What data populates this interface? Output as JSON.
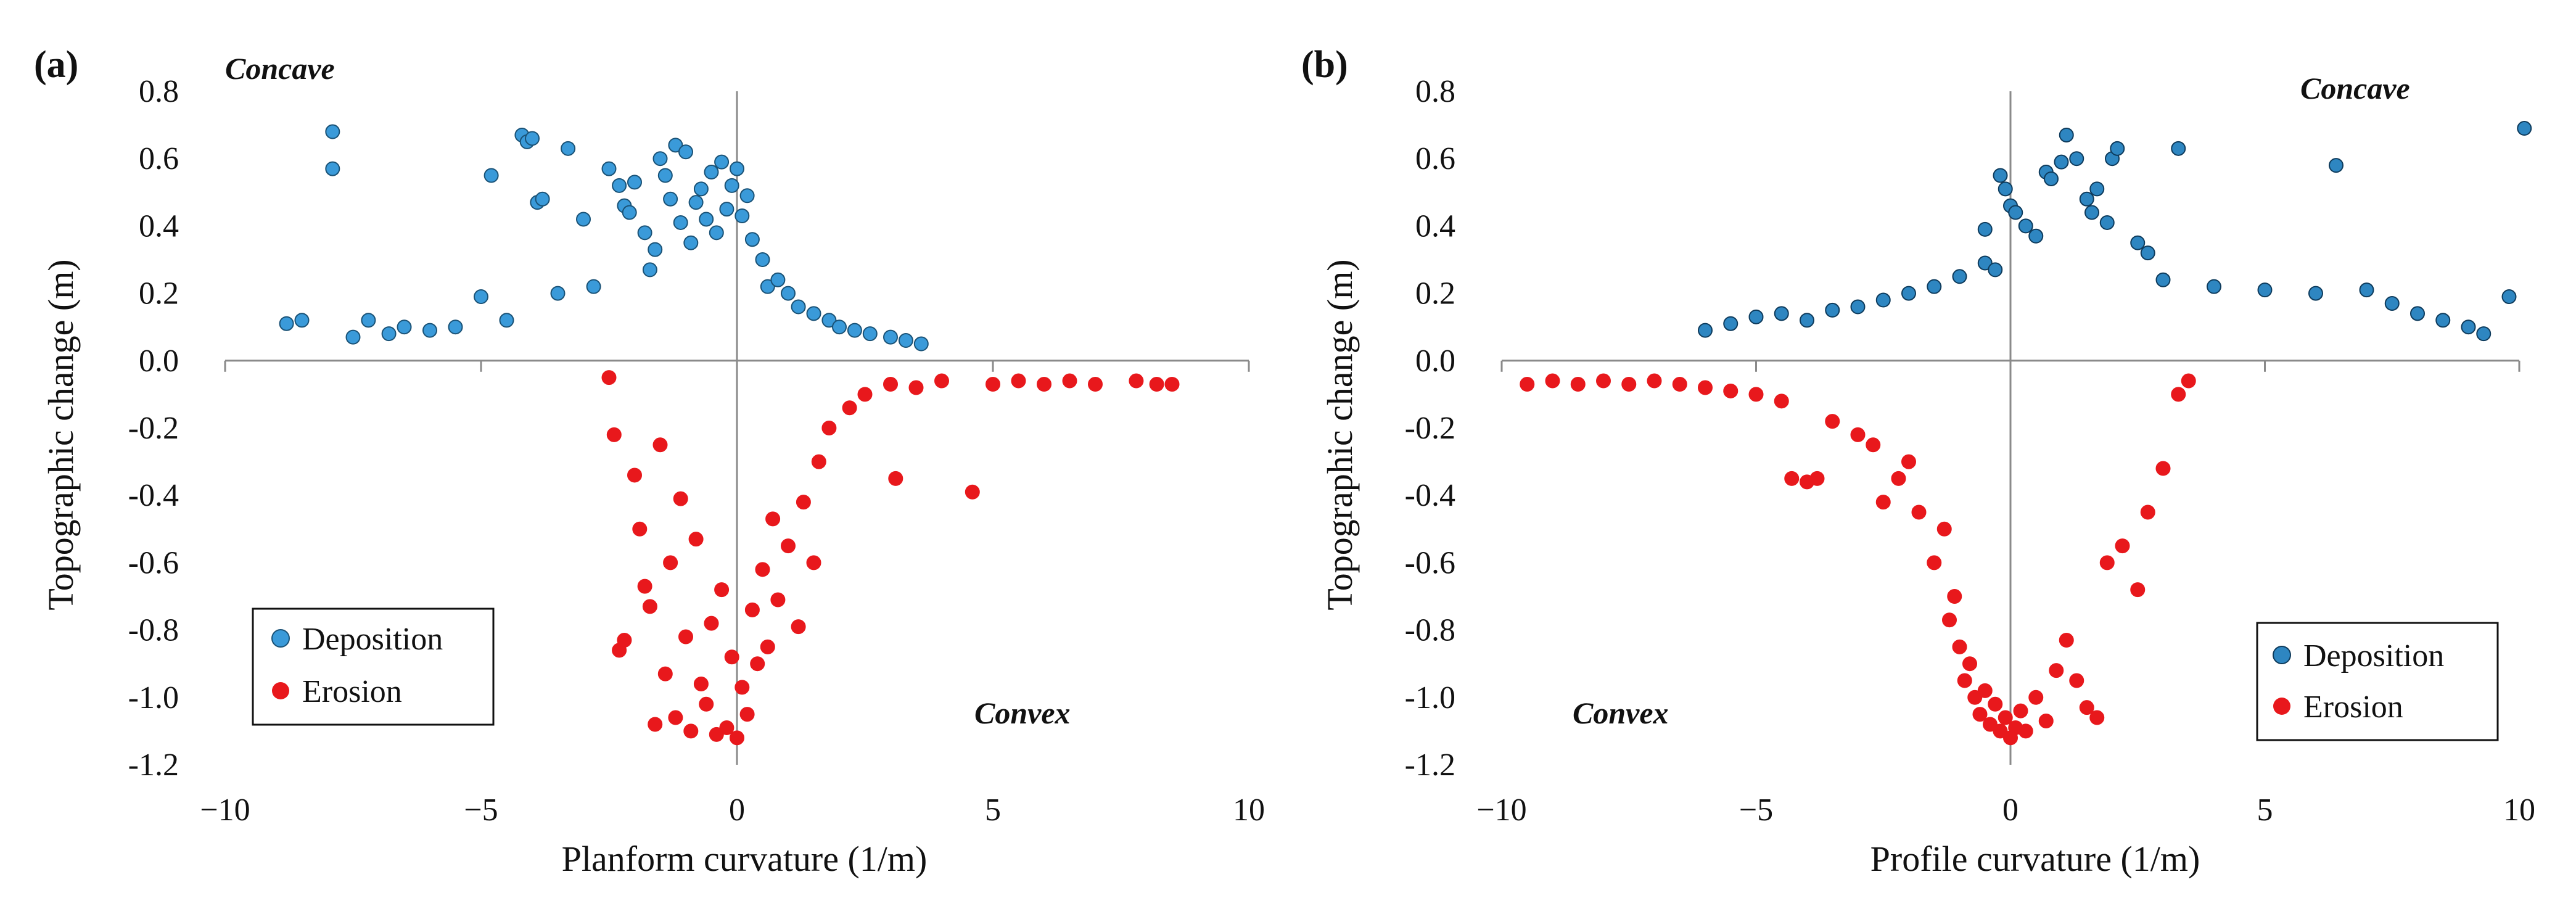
{
  "chart_data": [
    {
      "type": "scatter",
      "panel_label": "(a)",
      "xlabel": "Planform curvature (1/m)",
      "ylabel": "Topographic change (m)",
      "xlim": [
        -10,
        10
      ],
      "ylim": [
        -1.2,
        0.8
      ],
      "xticks": [
        "−10",
        "−5",
        "0",
        "5",
        "10"
      ],
      "yticks": [
        "0.8",
        "0.6",
        "0.4",
        "0.2",
        "0.0",
        "-0.2",
        "-0.4",
        "-0.6",
        "-0.8",
        "-1.0",
        "-1.2"
      ],
      "annotations": [
        {
          "text": "Concave",
          "position": "top-left"
        },
        {
          "text": "Convex",
          "position": "bottom-right"
        }
      ],
      "legend": {
        "position": "bottom-left",
        "entries": [
          "Deposition",
          "Erosion"
        ]
      },
      "series": [
        {
          "name": "Deposition",
          "color": "#3a9ad9",
          "edge": "#1a5276",
          "points": [
            [
              -8.8,
              0.11
            ],
            [
              -8.5,
              0.12
            ],
            [
              -7.9,
              0.68
            ],
            [
              -7.9,
              0.57
            ],
            [
              -7.5,
              0.07
            ],
            [
              -7.2,
              0.12
            ],
            [
              -6.8,
              0.08
            ],
            [
              -6.5,
              0.1
            ],
            [
              -6.0,
              0.09
            ],
            [
              -5.5,
              0.1
            ],
            [
              -5.0,
              0.19
            ],
            [
              -4.8,
              0.55
            ],
            [
              -4.5,
              0.12
            ],
            [
              -4.2,
              0.67
            ],
            [
              -4.1,
              0.65
            ],
            [
              -4.0,
              0.66
            ],
            [
              -3.9,
              0.47
            ],
            [
              -3.8,
              0.48
            ],
            [
              -3.5,
              0.2
            ],
            [
              -3.3,
              0.63
            ],
            [
              -3.0,
              0.42
            ],
            [
              -2.8,
              0.22
            ],
            [
              -2.5,
              0.57
            ],
            [
              -2.3,
              0.52
            ],
            [
              -2.2,
              0.46
            ],
            [
              -2.1,
              0.44
            ],
            [
              -2.0,
              0.53
            ],
            [
              -1.8,
              0.38
            ],
            [
              -1.7,
              0.27
            ],
            [
              -1.6,
              0.33
            ],
            [
              -1.5,
              0.6
            ],
            [
              -1.4,
              0.55
            ],
            [
              -1.3,
              0.48
            ],
            [
              -1.2,
              0.64
            ],
            [
              -1.1,
              0.41
            ],
            [
              -1.0,
              0.62
            ],
            [
              -0.9,
              0.35
            ],
            [
              -0.8,
              0.47
            ],
            [
              -0.7,
              0.51
            ],
            [
              -0.6,
              0.42
            ],
            [
              -0.5,
              0.56
            ],
            [
              -0.4,
              0.38
            ],
            [
              -0.3,
              0.59
            ],
            [
              -0.2,
              0.45
            ],
            [
              -0.1,
              0.52
            ],
            [
              0.0,
              0.57
            ],
            [
              0.1,
              0.43
            ],
            [
              0.2,
              0.49
            ],
            [
              0.3,
              0.36
            ],
            [
              0.5,
              0.3
            ],
            [
              0.6,
              0.22
            ],
            [
              0.8,
              0.24
            ],
            [
              1.0,
              0.2
            ],
            [
              1.2,
              0.16
            ],
            [
              1.5,
              0.14
            ],
            [
              1.8,
              0.12
            ],
            [
              2.0,
              0.1
            ],
            [
              2.3,
              0.09
            ],
            [
              2.6,
              0.08
            ],
            [
              3.0,
              0.07
            ],
            [
              3.3,
              0.06
            ],
            [
              3.6,
              0.05
            ]
          ]
        },
        {
          "name": "Erosion",
          "color": "#e8181c",
          "edge": "#e8181c",
          "points": [
            [
              -2.5,
              -0.05
            ],
            [
              -2.4,
              -0.22
            ],
            [
              -2.3,
              -0.86
            ],
            [
              -2.2,
              -0.83
            ],
            [
              -2.0,
              -0.34
            ],
            [
              -1.9,
              -0.5
            ],
            [
              -1.8,
              -0.67
            ],
            [
              -1.7,
              -0.73
            ],
            [
              -1.6,
              -1.08
            ],
            [
              -1.5,
              -0.25
            ],
            [
              -1.4,
              -0.93
            ],
            [
              -1.3,
              -0.6
            ],
            [
              -1.2,
              -1.06
            ],
            [
              -1.1,
              -0.41
            ],
            [
              -1.0,
              -0.82
            ],
            [
              -0.9,
              -1.1
            ],
            [
              -0.8,
              -0.53
            ],
            [
              -0.7,
              -0.96
            ],
            [
              -0.6,
              -1.02
            ],
            [
              -0.5,
              -0.78
            ],
            [
              -0.4,
              -1.11
            ],
            [
              -0.3,
              -0.68
            ],
            [
              -0.2,
              -1.09
            ],
            [
              -0.1,
              -0.88
            ],
            [
              0.0,
              -1.12
            ],
            [
              0.1,
              -0.97
            ],
            [
              0.2,
              -1.05
            ],
            [
              0.3,
              -0.74
            ],
            [
              0.4,
              -0.9
            ],
            [
              0.5,
              -0.62
            ],
            [
              0.6,
              -0.85
            ],
            [
              0.7,
              -0.47
            ],
            [
              0.8,
              -0.71
            ],
            [
              1.0,
              -0.55
            ],
            [
              1.2,
              -0.79
            ],
            [
              1.3,
              -0.42
            ],
            [
              1.5,
              -0.6
            ],
            [
              1.6,
              -0.3
            ],
            [
              1.8,
              -0.2
            ],
            [
              2.2,
              -0.14
            ],
            [
              2.5,
              -0.1
            ],
            [
              3.0,
              -0.07
            ],
            [
              3.1,
              -0.35
            ],
            [
              3.5,
              -0.08
            ],
            [
              4.0,
              -0.06
            ],
            [
              4.6,
              -0.39
            ],
            [
              5.0,
              -0.07
            ],
            [
              5.5,
              -0.06
            ],
            [
              6.0,
              -0.07
            ],
            [
              6.5,
              -0.06
            ],
            [
              7.0,
              -0.07
            ],
            [
              7.8,
              -0.06
            ],
            [
              8.2,
              -0.07
            ],
            [
              8.5,
              -0.07
            ]
          ]
        }
      ]
    },
    {
      "type": "scatter",
      "panel_label": "(b)",
      "xlabel": "Profile curvature (1/m)",
      "ylabel": "Topographic change (m)",
      "xlim": [
        -10,
        10
      ],
      "ylim": [
        -1.2,
        0.8
      ],
      "xticks": [
        "−10",
        "−5",
        "0",
        "5",
        "10"
      ],
      "yticks": [
        "0.8",
        "0.6",
        "0.4",
        "0.2",
        "0.0",
        "-0.2",
        "-0.4",
        "-0.6",
        "-0.8",
        "-1.0",
        "-1.2"
      ],
      "annotations": [
        {
          "text": "Concave",
          "position": "top-right"
        },
        {
          "text": "Convex",
          "position": "bottom-left"
        }
      ],
      "legend": {
        "position": "bottom-right",
        "entries": [
          "Deposition",
          "Erosion"
        ]
      },
      "series": [
        {
          "name": "Deposition",
          "color": "#2e86c1",
          "edge": "#0e3b5c",
          "points": [
            [
              -6.0,
              0.09
            ],
            [
              -5.5,
              0.11
            ],
            [
              -5.0,
              0.13
            ],
            [
              -4.5,
              0.14
            ],
            [
              -4.0,
              0.12
            ],
            [
              -3.5,
              0.15
            ],
            [
              -3.0,
              0.16
            ],
            [
              -2.5,
              0.18
            ],
            [
              -2.0,
              0.2
            ],
            [
              -1.5,
              0.22
            ],
            [
              -1.0,
              0.25
            ],
            [
              -0.5,
              0.29
            ],
            [
              -0.5,
              0.39
            ],
            [
              -0.3,
              0.27
            ],
            [
              -0.2,
              0.55
            ],
            [
              -0.1,
              0.51
            ],
            [
              0.0,
              0.46
            ],
            [
              0.1,
              0.44
            ],
            [
              0.3,
              0.4
            ],
            [
              0.5,
              0.37
            ],
            [
              0.7,
              0.56
            ],
            [
              0.8,
              0.54
            ],
            [
              1.0,
              0.59
            ],
            [
              1.1,
              0.67
            ],
            [
              1.3,
              0.6
            ],
            [
              1.5,
              0.48
            ],
            [
              1.6,
              0.44
            ],
            [
              1.7,
              0.51
            ],
            [
              1.9,
              0.41
            ],
            [
              2.0,
              0.6
            ],
            [
              2.1,
              0.63
            ],
            [
              2.5,
              0.35
            ],
            [
              2.7,
              0.32
            ],
            [
              3.3,
              0.63
            ],
            [
              3.0,
              0.24
            ],
            [
              4.0,
              0.22
            ],
            [
              5.0,
              0.21
            ],
            [
              6.0,
              0.2
            ],
            [
              6.4,
              0.58
            ],
            [
              7.0,
              0.21
            ],
            [
              7.5,
              0.17
            ],
            [
              8.0,
              0.14
            ],
            [
              8.5,
              0.12
            ],
            [
              9.0,
              0.1
            ],
            [
              9.3,
              0.08
            ],
            [
              9.8,
              0.19
            ],
            [
              10.1,
              0.69
            ]
          ]
        },
        {
          "name": "Erosion",
          "color": "#e8181c",
          "edge": "#e8181c",
          "points": [
            [
              -9.5,
              -0.07
            ],
            [
              -9.0,
              -0.06
            ],
            [
              -8.5,
              -0.07
            ],
            [
              -8.0,
              -0.06
            ],
            [
              -7.5,
              -0.07
            ],
            [
              -7.0,
              -0.06
            ],
            [
              -6.5,
              -0.07
            ],
            [
              -6.0,
              -0.08
            ],
            [
              -5.5,
              -0.09
            ],
            [
              -5.0,
              -0.1
            ],
            [
              -4.5,
              -0.12
            ],
            [
              -4.3,
              -0.35
            ],
            [
              -4.0,
              -0.36
            ],
            [
              -3.8,
              -0.35
            ],
            [
              -3.5,
              -0.18
            ],
            [
              -3.0,
              -0.22
            ],
            [
              -2.7,
              -0.25
            ],
            [
              -2.5,
              -0.42
            ],
            [
              -2.2,
              -0.35
            ],
            [
              -2.0,
              -0.3
            ],
            [
              -1.8,
              -0.45
            ],
            [
              -1.5,
              -0.6
            ],
            [
              -1.3,
              -0.5
            ],
            [
              -1.2,
              -0.77
            ],
            [
              -1.1,
              -0.7
            ],
            [
              -1.0,
              -0.85
            ],
            [
              -0.9,
              -0.95
            ],
            [
              -0.8,
              -0.9
            ],
            [
              -0.7,
              -1.0
            ],
            [
              -0.6,
              -1.05
            ],
            [
              -0.5,
              -0.98
            ],
            [
              -0.4,
              -1.08
            ],
            [
              -0.3,
              -1.02
            ],
            [
              -0.2,
              -1.1
            ],
            [
              -0.1,
              -1.06
            ],
            [
              0.0,
              -1.12
            ],
            [
              0.1,
              -1.09
            ],
            [
              0.2,
              -1.04
            ],
            [
              0.3,
              -1.1
            ],
            [
              0.5,
              -1.0
            ],
            [
              0.7,
              -1.07
            ],
            [
              0.9,
              -0.92
            ],
            [
              1.1,
              -0.83
            ],
            [
              1.3,
              -0.95
            ],
            [
              1.5,
              -1.03
            ],
            [
              1.7,
              -1.06
            ],
            [
              1.9,
              -0.6
            ],
            [
              2.2,
              -0.55
            ],
            [
              2.5,
              -0.68
            ],
            [
              2.7,
              -0.45
            ],
            [
              3.0,
              -0.32
            ],
            [
              3.3,
              -0.1
            ],
            [
              3.5,
              -0.06
            ]
          ]
        }
      ]
    }
  ]
}
